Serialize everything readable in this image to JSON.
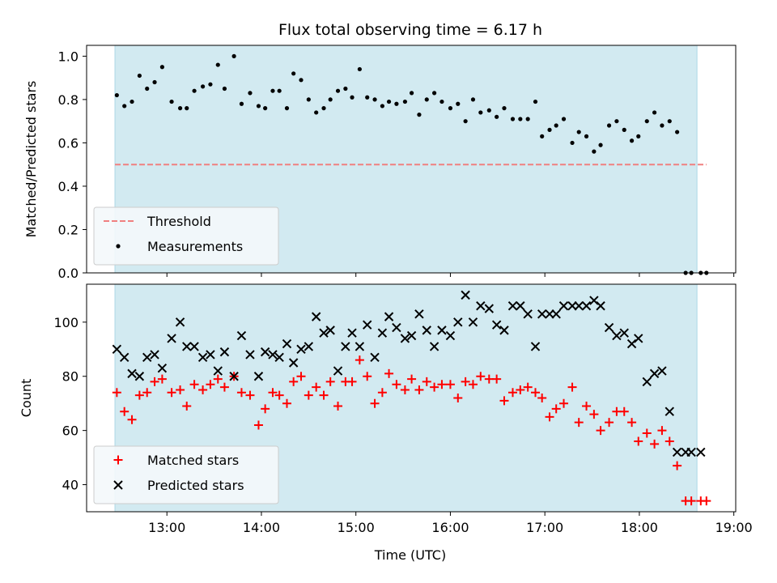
{
  "chart_data": {
    "title": "Flux total observing time = 6.17 h",
    "xlabel": "Time (UTC)",
    "xlim": [
      12.15,
      19.02
    ],
    "x_ticks": [
      {
        "value": 13,
        "label": "13:00"
      },
      {
        "value": 14,
        "label": "14:00"
      },
      {
        "value": 15,
        "label": "15:00"
      },
      {
        "value": 16,
        "label": "16:00"
      },
      {
        "value": 17,
        "label": "17:00"
      },
      {
        "value": 18,
        "label": "18:00"
      },
      {
        "value": 19,
        "label": "19:00"
      }
    ],
    "observing_window": [
      12.45,
      18.61
    ],
    "colors": {
      "window": "#add8e6",
      "threshold": "#f08080",
      "measurements": "#000000",
      "matched": "#ff0000",
      "predicted": "#000000",
      "legend_bg": "#f4f8fb"
    },
    "panels": [
      {
        "type": "scatter",
        "ylabel": "Matched/Predicted stars",
        "ylim": [
          0,
          1.05
        ],
        "y_ticks": [
          {
            "value": 0.0,
            "label": "0.0"
          },
          {
            "value": 0.2,
            "label": "0.2"
          },
          {
            "value": 0.4,
            "label": "0.4"
          },
          {
            "value": 0.6,
            "label": "0.6"
          },
          {
            "value": 0.8,
            "label": "0.8"
          },
          {
            "value": 1.0,
            "label": "1.0"
          }
        ],
        "legend": {
          "placement": "lower-left"
        },
        "threshold": {
          "name": "Threshold",
          "value": 0.5,
          "x_range": [
            12.45,
            18.71
          ]
        },
        "series": [
          {
            "name": "Measurements",
            "marker": "dot",
            "x": [
              12.47,
              12.55,
              12.63,
              12.71,
              12.79,
              12.87,
              12.95,
              13.05,
              13.14,
              13.21,
              13.29,
              13.38,
              13.46,
              13.54,
              13.61,
              13.71,
              13.79,
              13.88,
              13.97,
              14.04,
              14.12,
              14.19,
              14.27,
              14.34,
              14.42,
              14.5,
              14.58,
              14.66,
              14.73,
              14.81,
              14.89,
              14.96,
              15.04,
              15.12,
              15.2,
              15.28,
              15.35,
              15.43,
              15.52,
              15.59,
              15.67,
              15.75,
              15.83,
              15.91,
              16.0,
              16.08,
              16.16,
              16.24,
              16.32,
              16.41,
              16.49,
              16.57,
              16.66,
              16.74,
              16.82,
              16.9,
              16.97,
              17.05,
              17.12,
              17.2,
              17.29,
              17.36,
              17.44,
              17.52,
              17.59,
              17.68,
              17.76,
              17.84,
              17.92,
              17.99,
              18.08,
              18.16,
              18.24,
              18.32,
              18.4,
              18.49,
              18.55,
              18.65,
              18.71
            ],
            "y": [
              0.82,
              0.77,
              0.79,
              0.91,
              0.85,
              0.88,
              0.95,
              0.79,
              0.76,
              0.76,
              0.84,
              0.86,
              0.87,
              0.96,
              0.85,
              1.0,
              0.78,
              0.83,
              0.77,
              0.76,
              0.84,
              0.84,
              0.76,
              0.92,
              0.89,
              0.8,
              0.74,
              0.76,
              0.8,
              0.84,
              0.85,
              0.81,
              0.94,
              0.81,
              0.8,
              0.77,
              0.79,
              0.78,
              0.79,
              0.83,
              0.73,
              0.8,
              0.83,
              0.79,
              0.76,
              0.78,
              0.7,
              0.8,
              0.74,
              0.75,
              0.72,
              0.76,
              0.71,
              0.71,
              0.71,
              0.79,
              0.63,
              0.66,
              0.68,
              0.71,
              0.6,
              0.65,
              0.63,
              0.56,
              0.59,
              0.68,
              0.7,
              0.66,
              0.61,
              0.63,
              0.7,
              0.74,
              0.68,
              0.7,
              0.65,
              0.0,
              0.0,
              0.0,
              0.0
            ]
          }
        ]
      },
      {
        "type": "scatter",
        "ylabel": "Count",
        "ylim": [
          30,
          114
        ],
        "y_ticks": [
          {
            "value": 40,
            "label": "40"
          },
          {
            "value": 60,
            "label": "60"
          },
          {
            "value": 80,
            "label": "80"
          },
          {
            "value": 100,
            "label": "100"
          }
        ],
        "legend": {
          "placement": "lower-left"
        },
        "series": [
          {
            "name": "Matched stars",
            "marker": "plus",
            "x": [
              12.47,
              12.55,
              12.63,
              12.71,
              12.79,
              12.87,
              12.95,
              13.05,
              13.14,
              13.21,
              13.29,
              13.38,
              13.46,
              13.54,
              13.61,
              13.71,
              13.79,
              13.88,
              13.97,
              14.04,
              14.12,
              14.19,
              14.27,
              14.34,
              14.42,
              14.5,
              14.58,
              14.66,
              14.73,
              14.81,
              14.89,
              14.96,
              15.04,
              15.12,
              15.2,
              15.28,
              15.35,
              15.43,
              15.52,
              15.59,
              15.67,
              15.75,
              15.83,
              15.91,
              16.0,
              16.08,
              16.16,
              16.24,
              16.32,
              16.41,
              16.49,
              16.57,
              16.66,
              16.74,
              16.82,
              16.9,
              16.97,
              17.05,
              17.12,
              17.2,
              17.29,
              17.36,
              17.44,
              17.52,
              17.59,
              17.68,
              17.76,
              17.84,
              17.92,
              17.99,
              18.08,
              18.16,
              18.24,
              18.32,
              18.4,
              18.49,
              18.55,
              18.65,
              18.71
            ],
            "y": [
              74,
              67,
              64,
              73,
              74,
              78,
              79,
              74,
              75,
              69,
              77,
              75,
              77,
              79,
              76,
              80,
              74,
              73,
              62,
              68,
              74,
              73,
              70,
              78,
              80,
              73,
              76,
              73,
              78,
              69,
              78,
              78,
              86,
              80,
              70,
              74,
              81,
              77,
              75,
              79,
              75,
              78,
              76,
              77,
              77,
              72,
              78,
              77,
              80,
              79,
              79,
              71,
              74,
              75,
              76,
              74,
              72,
              65,
              68,
              70,
              76,
              63,
              69,
              66,
              60,
              63,
              67,
              67,
              63,
              56,
              59,
              55,
              60,
              56,
              47,
              34,
              34,
              34,
              34
            ]
          },
          {
            "name": "Predicted stars",
            "marker": "x",
            "x": [
              12.47,
              12.55,
              12.63,
              12.71,
              12.79,
              12.87,
              12.95,
              13.05,
              13.14,
              13.21,
              13.29,
              13.38,
              13.46,
              13.54,
              13.61,
              13.71,
              13.79,
              13.88,
              13.97,
              14.04,
              14.12,
              14.19,
              14.27,
              14.34,
              14.42,
              14.5,
              14.58,
              14.66,
              14.73,
              14.81,
              14.89,
              14.96,
              15.04,
              15.12,
              15.2,
              15.28,
              15.35,
              15.43,
              15.52,
              15.59,
              15.67,
              15.75,
              15.83,
              15.91,
              16.0,
              16.08,
              16.16,
              16.24,
              16.32,
              16.41,
              16.49,
              16.57,
              16.66,
              16.74,
              16.82,
              16.9,
              16.97,
              17.05,
              17.12,
              17.2,
              17.29,
              17.36,
              17.44,
              17.52,
              17.59,
              17.68,
              17.76,
              17.84,
              17.92,
              17.99,
              18.08,
              18.16,
              18.24,
              18.32,
              18.4,
              18.49,
              18.55,
              18.65
            ],
            "y": [
              90,
              87,
              81,
              80,
              87,
              88,
              83,
              94,
              100,
              91,
              91,
              87,
              88,
              82,
              89,
              80,
              95,
              88,
              80,
              89,
              88,
              87,
              92,
              85,
              90,
              91,
              102,
              96,
              97,
              82,
              91,
              96,
              91,
              99,
              87,
              96,
              102,
              98,
              94,
              95,
              103,
              97,
              91,
              97,
              95,
              100,
              110,
              100,
              106,
              105,
              99,
              97,
              106,
              106,
              103,
              91,
              103,
              103,
              103,
              106,
              106,
              106,
              106,
              108,
              106,
              98,
              95,
              96,
              92,
              94,
              78,
              81,
              82,
              67,
              52,
              52,
              52,
              52
            ]
          }
        ]
      }
    ]
  }
}
